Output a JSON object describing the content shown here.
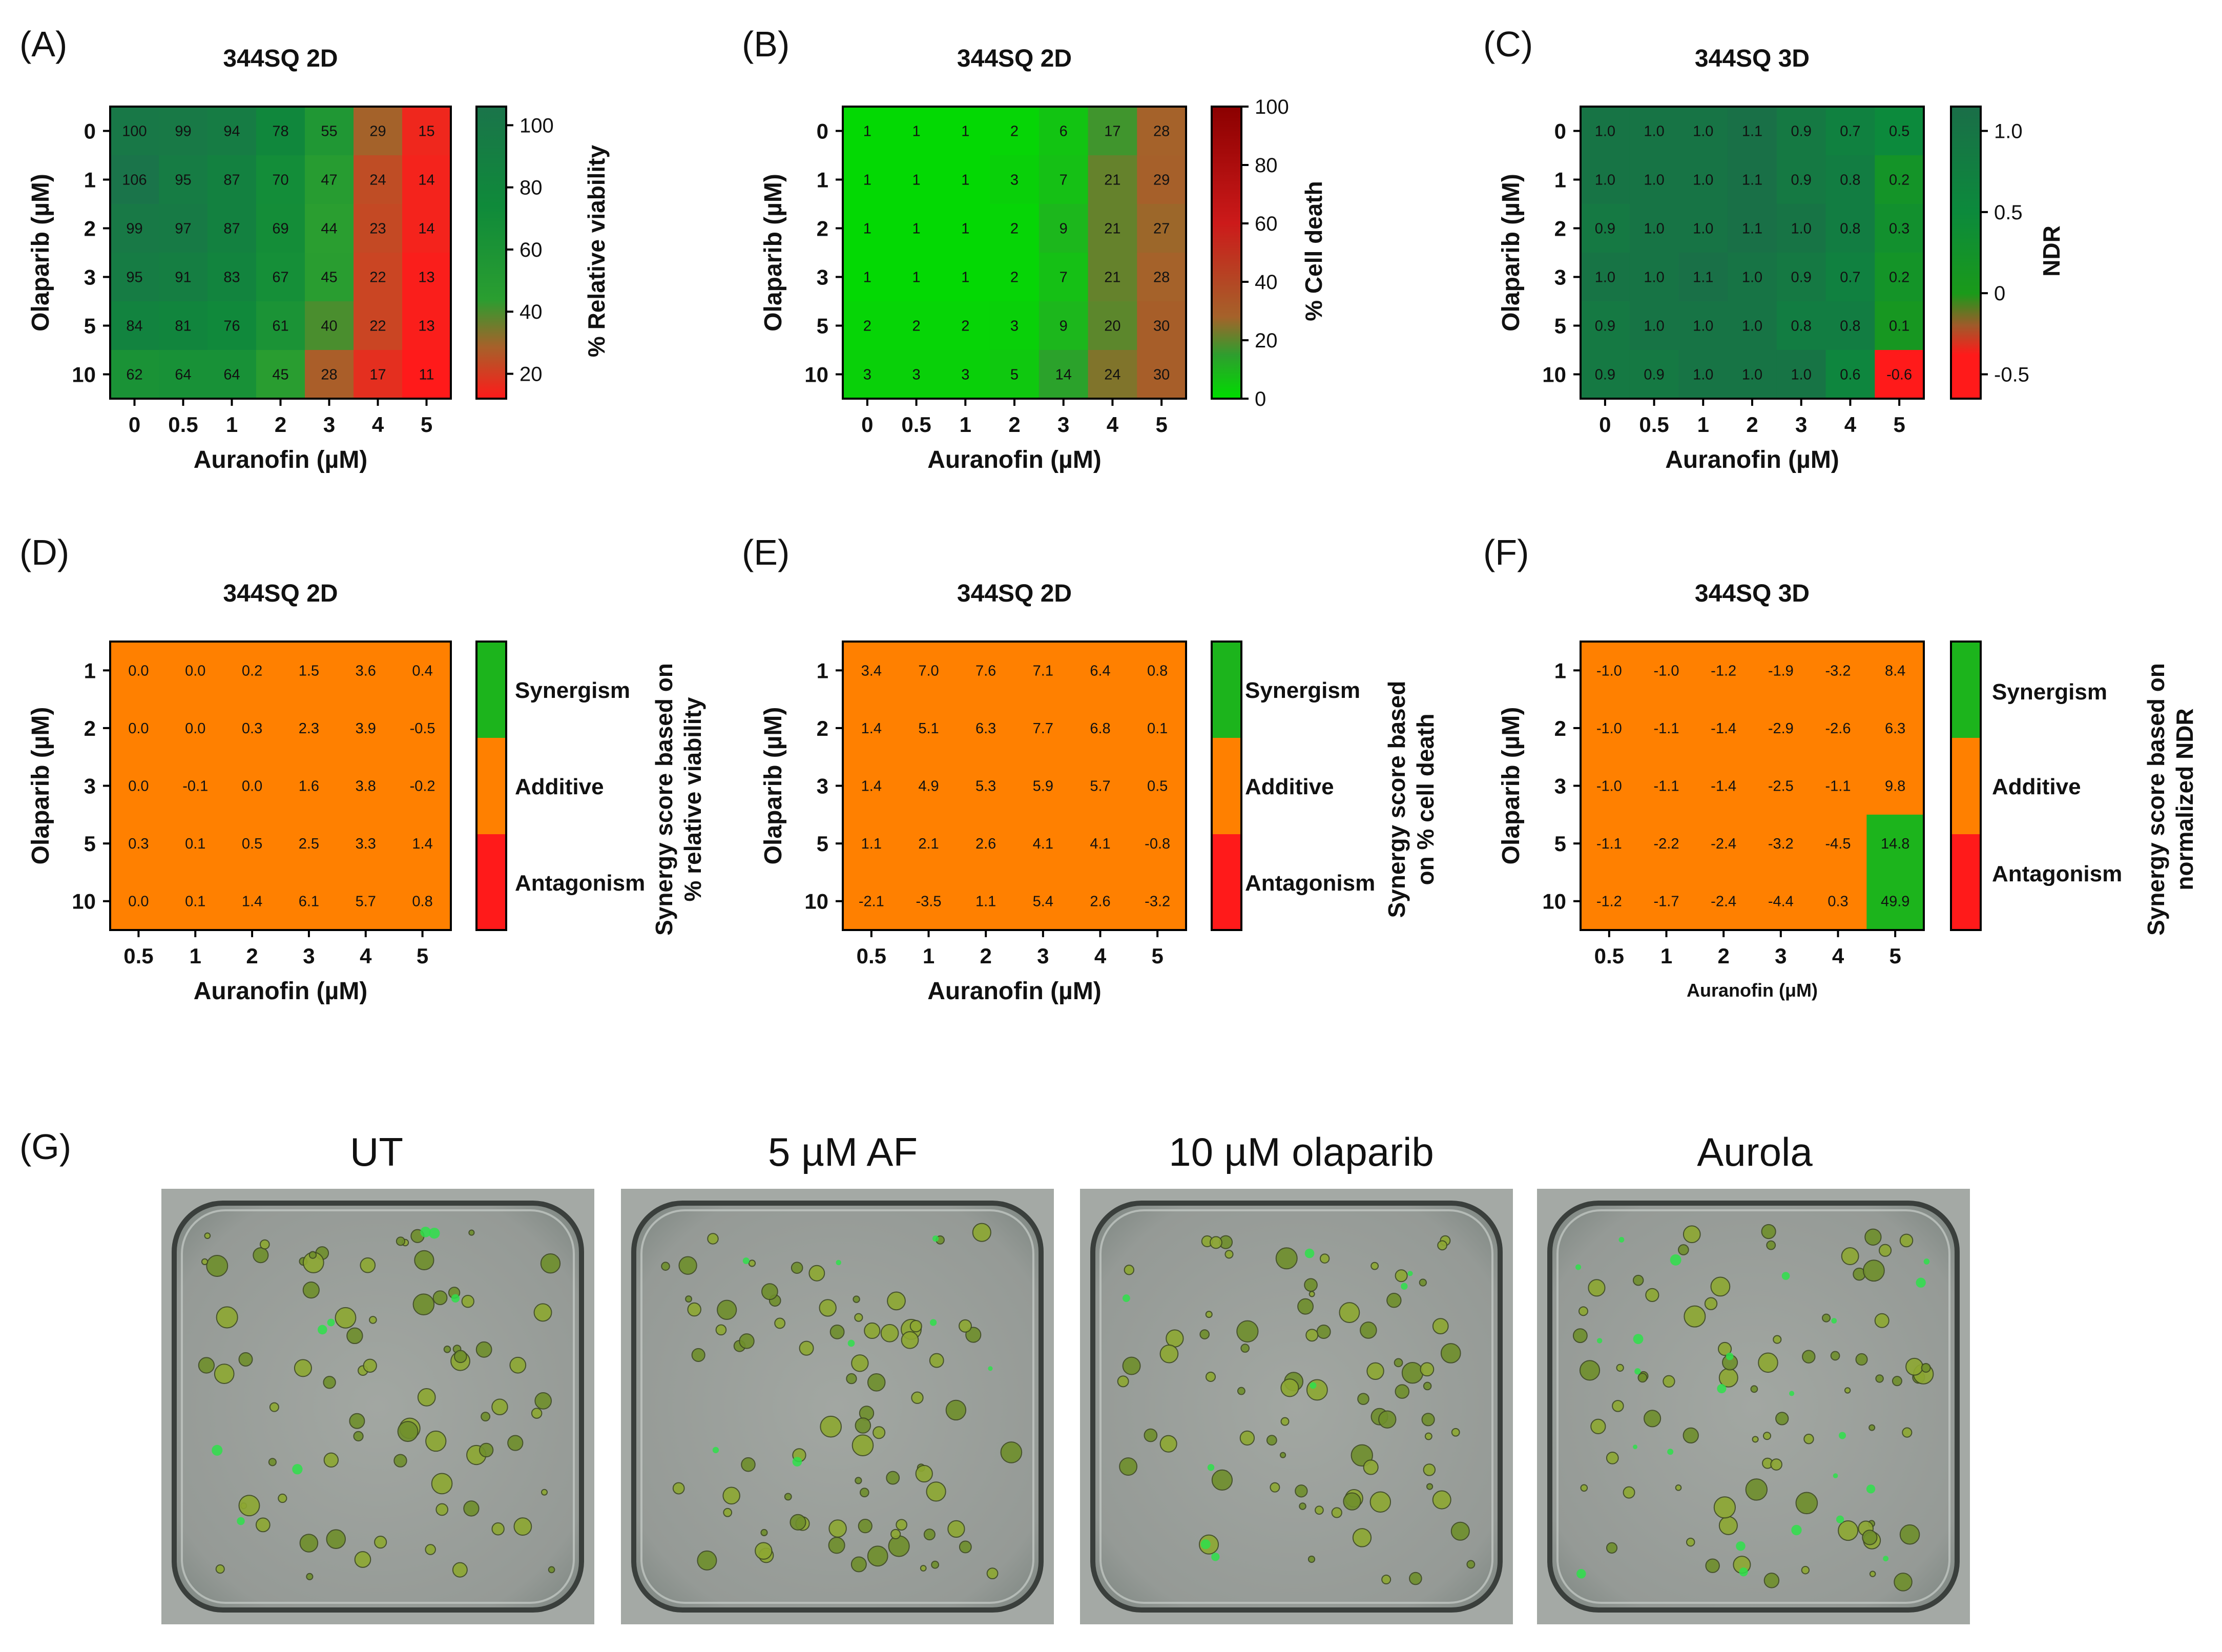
{
  "figure_labels": [
    "(A)",
    "(B)",
    "(C)",
    "(D)",
    "(E)",
    "(F)",
    "(G)"
  ],
  "colors": {
    "viability": [
      "#ff1a1a",
      "#a5622a",
      "#2e9e3a",
      "#0f8a3a",
      "#1a7a4a"
    ],
    "death": [
      "#00dd00",
      "#2e9e2e",
      "#a5622a",
      "#c41a1a",
      "#8b0000"
    ],
    "ndr": [
      "#ff1a1a",
      "#a05a2a",
      "#1a9a1a",
      "#0c8a3c",
      "#1a6e48"
    ],
    "synergism": "#1cb41c",
    "additive": "#ff8000",
    "antagonism": "#ff1a1a"
  },
  "chart_data": [
    {
      "type": "heatmap",
      "title": "344SQ 2D",
      "xlabel": "Auranofin (µM)",
      "ylabel": "Olaparib (µM)",
      "x": [
        "0",
        "0.5",
        "1",
        "2",
        "3",
        "4",
        "5"
      ],
      "y": [
        "0",
        "1",
        "2",
        "3",
        "5",
        "10"
      ],
      "values": [
        [
          100,
          99,
          94,
          78,
          55,
          29,
          15
        ],
        [
          106,
          95,
          87,
          70,
          47,
          24,
          14
        ],
        [
          99,
          97,
          87,
          69,
          44,
          23,
          14
        ],
        [
          95,
          91,
          83,
          67,
          45,
          22,
          13
        ],
        [
          84,
          81,
          76,
          61,
          40,
          22,
          13
        ],
        [
          62,
          64,
          64,
          45,
          28,
          17,
          11
        ]
      ],
      "labels": [
        [
          "100",
          "99",
          "94",
          "78",
          "55",
          "29",
          "15"
        ],
        [
          "106",
          "95",
          "87",
          "70",
          "47",
          "24",
          "14"
        ],
        [
          "99",
          "97",
          "87",
          "69",
          "44",
          "23",
          "14"
        ],
        [
          "95",
          "91",
          "83",
          "67",
          "45",
          "22",
          "13"
        ],
        [
          "84",
          "81",
          "76",
          "61",
          "40",
          "22",
          "13"
        ],
        [
          "62",
          "64",
          "64",
          "45",
          "28",
          "17",
          "11"
        ]
      ],
      "colorbar": {
        "label": "% Relative viability",
        "ticks": [
          "100",
          "80",
          "60",
          "40",
          "20"
        ],
        "tick_values": [
          100,
          80,
          60,
          40,
          20
        ],
        "range": [
          12,
          106
        ]
      }
    },
    {
      "type": "heatmap",
      "title": "344SQ 2D",
      "xlabel": "Auranofin (µM)",
      "ylabel": "Olaparib (µM)",
      "x": [
        "0",
        "0.5",
        "1",
        "2",
        "3",
        "4",
        "5"
      ],
      "y": [
        "0",
        "1",
        "2",
        "3",
        "5",
        "10"
      ],
      "values": [
        [
          1,
          1,
          1,
          2,
          6,
          17,
          28
        ],
        [
          1,
          1,
          1,
          3,
          7,
          21,
          29
        ],
        [
          1,
          1,
          1,
          2,
          9,
          21,
          27
        ],
        [
          1,
          1,
          1,
          2,
          7,
          21,
          28
        ],
        [
          2,
          2,
          2,
          3,
          9,
          20,
          30
        ],
        [
          3,
          3,
          3,
          5,
          14,
          24,
          30
        ]
      ],
      "labels": [
        [
          "1",
          "1",
          "1",
          "2",
          "6",
          "17",
          "28"
        ],
        [
          "1",
          "1",
          "1",
          "3",
          "7",
          "21",
          "29"
        ],
        [
          "1",
          "1",
          "1",
          "2",
          "9",
          "21",
          "27"
        ],
        [
          "1",
          "1",
          "1",
          "2",
          "7",
          "21",
          "28"
        ],
        [
          "2",
          "2",
          "2",
          "3",
          "9",
          "20",
          "30"
        ],
        [
          "3",
          "3",
          "3",
          "5",
          "14",
          "24",
          "30"
        ]
      ],
      "colorbar": {
        "label": "% Cell death",
        "ticks": [
          "100",
          "80",
          "60",
          "40",
          "20",
          "0"
        ],
        "tick_values": [
          100,
          80,
          60,
          40,
          20,
          0
        ],
        "range": [
          0,
          100
        ]
      }
    },
    {
      "type": "heatmap",
      "title": "344SQ 3D",
      "xlabel": "Auranofin (µM)",
      "ylabel": "Olaparib (µM)",
      "x": [
        "0",
        "0.5",
        "1",
        "2",
        "3",
        "4",
        "5"
      ],
      "y": [
        "0",
        "1",
        "2",
        "3",
        "5",
        "10"
      ],
      "values": [
        [
          1.0,
          1.0,
          1.0,
          1.1,
          0.9,
          0.7,
          0.5
        ],
        [
          1.0,
          1.0,
          1.0,
          1.1,
          0.9,
          0.8,
          0.2
        ],
        [
          0.9,
          1.0,
          1.0,
          1.1,
          1.0,
          0.8,
          0.3
        ],
        [
          1.0,
          1.0,
          1.1,
          1.0,
          0.9,
          0.7,
          0.2
        ],
        [
          0.9,
          1.0,
          1.0,
          1.0,
          0.8,
          0.8,
          0.1
        ],
        [
          0.9,
          0.9,
          1.0,
          1.0,
          1.0,
          0.6,
          -0.6
        ]
      ],
      "labels": [
        [
          "1.0",
          "1.0",
          "1.0",
          "1.1",
          "0.9",
          "0.7",
          "0.5"
        ],
        [
          "1.0",
          "1.0",
          "1.0",
          "1.1",
          "0.9",
          "0.8",
          "0.2"
        ],
        [
          "0.9",
          "1.0",
          "1.0",
          "1.1",
          "1.0",
          "0.8",
          "0.3"
        ],
        [
          "1.0",
          "1.0",
          "1.1",
          "1.0",
          "0.9",
          "0.7",
          "0.2"
        ],
        [
          "0.9",
          "1.0",
          "1.0",
          "1.0",
          "0.8",
          "0.8",
          "0.1"
        ],
        [
          "0.9",
          "0.9",
          "1.0",
          "1.0",
          "1.0",
          "0.6",
          "-0.6"
        ]
      ],
      "colorbar": {
        "label": "NDR",
        "ticks": [
          "1.0",
          "0.5",
          "0",
          "-0.5"
        ],
        "tick_values": [
          1.0,
          0.5,
          0,
          -0.5
        ],
        "range": [
          -0.65,
          1.15
        ]
      }
    },
    {
      "type": "heatmap",
      "title": "344SQ 2D",
      "xlabel": "Auranofin (µM)",
      "ylabel": "Olaparib (µM)",
      "x": [
        "0.5",
        "1",
        "2",
        "3",
        "4",
        "5"
      ],
      "y": [
        "1",
        "2",
        "3",
        "5",
        "10"
      ],
      "values": [
        [
          0.0,
          0.0,
          0.2,
          1.5,
          3.6,
          0.4
        ],
        [
          0.0,
          0.0,
          0.3,
          2.3,
          3.9,
          -0.5
        ],
        [
          0.0,
          -0.1,
          0.0,
          1.6,
          3.8,
          -0.2
        ],
        [
          0.3,
          0.1,
          0.5,
          2.5,
          3.3,
          1.4
        ],
        [
          0.0,
          0.1,
          1.4,
          6.1,
          5.7,
          0.8
        ]
      ],
      "labels": [
        [
          "0.0",
          "0.0",
          "0.2",
          "1.5",
          "3.6",
          "0.4"
        ],
        [
          "0.0",
          "0.0",
          "0.3",
          "2.3",
          "3.9",
          "-0.5"
        ],
        [
          "0.0",
          "-0.1",
          "0.0",
          "1.6",
          "3.8",
          "-0.2"
        ],
        [
          "0.3",
          "0.1",
          "0.5",
          "2.5",
          "3.3",
          "1.4"
        ],
        [
          "0.0",
          "0.1",
          "1.4",
          "6.1",
          "5.7",
          "0.8"
        ]
      ],
      "categories": [
        "Synergism",
        "Additive",
        "Antagonism"
      ],
      "colorbar_label": [
        "Synergy score based on",
        "% relative viability"
      ]
    },
    {
      "type": "heatmap",
      "title": "344SQ 2D",
      "xlabel": "Auranofin (µM)",
      "ylabel": "Olaparib (µM)",
      "x": [
        "0.5",
        "1",
        "2",
        "3",
        "4",
        "5"
      ],
      "y": [
        "1",
        "2",
        "3",
        "5",
        "10"
      ],
      "values": [
        [
          3.4,
          7.0,
          7.6,
          7.1,
          6.4,
          0.8
        ],
        [
          1.4,
          5.1,
          6.3,
          7.7,
          6.8,
          0.1
        ],
        [
          1.4,
          4.9,
          5.3,
          5.9,
          5.7,
          0.5
        ],
        [
          1.1,
          2.1,
          2.6,
          4.1,
          4.1,
          -0.8
        ],
        [
          -2.1,
          -3.5,
          1.1,
          5.4,
          2.6,
          -3.2
        ]
      ],
      "labels": [
        [
          "3.4",
          "7.0",
          "7.6",
          "7.1",
          "6.4",
          "0.8"
        ],
        [
          "1.4",
          "5.1",
          "6.3",
          "7.7",
          "6.8",
          "0.1"
        ],
        [
          "1.4",
          "4.9",
          "5.3",
          "5.9",
          "5.7",
          "0.5"
        ],
        [
          "1.1",
          "2.1",
          "2.6",
          "4.1",
          "4.1",
          "-0.8"
        ],
        [
          "-2.1",
          "-3.5",
          "1.1",
          "5.4",
          "2.6",
          "-3.2"
        ]
      ],
      "categories": [
        "Synergism",
        "Additive",
        "Antagonism"
      ],
      "colorbar_label": [
        "Synergy score based",
        "on % cell death"
      ]
    },
    {
      "type": "heatmap",
      "title": "344SQ  3D",
      "xlabel": "Auranofin (μM)",
      "ylabel": "Olaparib (µM)",
      "x": [
        "0.5",
        "1",
        "2",
        "3",
        "4",
        "5"
      ],
      "y": [
        "1",
        "2",
        "3",
        "5",
        "10"
      ],
      "values": [
        [
          -1.0,
          -1.0,
          -1.2,
          -1.9,
          -3.2,
          8.4
        ],
        [
          -1.0,
          -1.1,
          -1.4,
          -2.9,
          -2.6,
          6.3
        ],
        [
          -1.0,
          -1.1,
          -1.4,
          -2.5,
          -1.1,
          9.8
        ],
        [
          -1.1,
          -2.2,
          -2.4,
          -3.2,
          -4.5,
          14.8
        ],
        [
          -1.2,
          -1.7,
          -2.4,
          -4.4,
          0.3,
          49.9
        ]
      ],
      "labels": [
        [
          "-1.0",
          "-1.0",
          "-1.2",
          "-1.9",
          "-3.2",
          "8.4"
        ],
        [
          "-1.0",
          "-1.1",
          "-1.4",
          "-2.9",
          "-2.6",
          "6.3"
        ],
        [
          "-1.0",
          "-1.1",
          "-1.4",
          "-2.5",
          "-1.1",
          "9.8"
        ],
        [
          "-1.1",
          "-2.2",
          "-2.4",
          "-3.2",
          "-4.5",
          "14.8"
        ],
        [
          "-1.2",
          "-1.7",
          "-2.4",
          "-4.4",
          "0.3",
          "49.9"
        ]
      ],
      "categories": [
        "Synergism",
        "Additive",
        "Antagonism"
      ],
      "colorbar_label": [
        "Synergy score based on",
        "normalized NDR"
      ]
    }
  ],
  "panel_g": {
    "titles": [
      "UT",
      "5 µM AF",
      "10 µM olaparib",
      "Aurola"
    ]
  }
}
